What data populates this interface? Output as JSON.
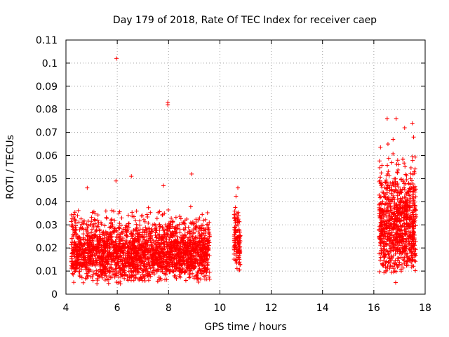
{
  "chart_data": {
    "type": "scatter",
    "title": "Day 179 of 2018, Rate Of TEC Index for receiver caep",
    "xlabel": "GPS time / hours",
    "ylabel": "ROTI / TECUs",
    "xlim": [
      4,
      18
    ],
    "ylim": [
      0,
      0.11
    ],
    "xticks": [
      4,
      6,
      8,
      10,
      12,
      14,
      16,
      18
    ],
    "xtick_labels": [
      "4",
      "6",
      "8",
      "10",
      "12",
      "14",
      "16",
      "18"
    ],
    "yticks": [
      0,
      0.01,
      0.02,
      0.03,
      0.04,
      0.05,
      0.06,
      0.07,
      0.08,
      0.09,
      0.1,
      0.11
    ],
    "ytick_labels": [
      "0",
      "0.01",
      "0.02",
      "0.03",
      "0.04",
      "0.05",
      "0.06",
      "0.07",
      "0.08",
      "0.09",
      "0.1",
      "0.11"
    ],
    "grid": true,
    "marker": "+",
    "color": "#ff0000",
    "series": [
      {
        "name": "ROTI",
        "clusters": [
          {
            "x_start": 4.2,
            "x_end": 9.6,
            "y_min": 0.004,
            "y_max": 0.04,
            "count": 2400
          },
          {
            "x_start": 10.55,
            "x_end": 10.8,
            "y_min": 0.009,
            "y_max": 0.045,
            "count": 120
          },
          {
            "x_start": 16.2,
            "x_end": 17.65,
            "y_min": 0.006,
            "y_max": 0.068,
            "count": 900
          }
        ],
        "notable_points": [
          {
            "x": 5.97,
            "y": 0.102
          },
          {
            "x": 7.97,
            "y": 0.083
          },
          {
            "x": 7.97,
            "y": 0.082
          },
          {
            "x": 8.9,
            "y": 0.052
          },
          {
            "x": 6.55,
            "y": 0.051
          },
          {
            "x": 5.95,
            "y": 0.049
          },
          {
            "x": 7.8,
            "y": 0.047
          },
          {
            "x": 4.83,
            "y": 0.046
          },
          {
            "x": 10.7,
            "y": 0.046
          },
          {
            "x": 16.52,
            "y": 0.076
          },
          {
            "x": 16.87,
            "y": 0.076
          },
          {
            "x": 17.5,
            "y": 0.074
          },
          {
            "x": 17.2,
            "y": 0.072
          },
          {
            "x": 16.75,
            "y": 0.067
          },
          {
            "x": 16.55,
            "y": 0.065
          },
          {
            "x": 17.55,
            "y": 0.068
          },
          {
            "x": 16.85,
            "y": 0.005
          }
        ]
      }
    ]
  }
}
